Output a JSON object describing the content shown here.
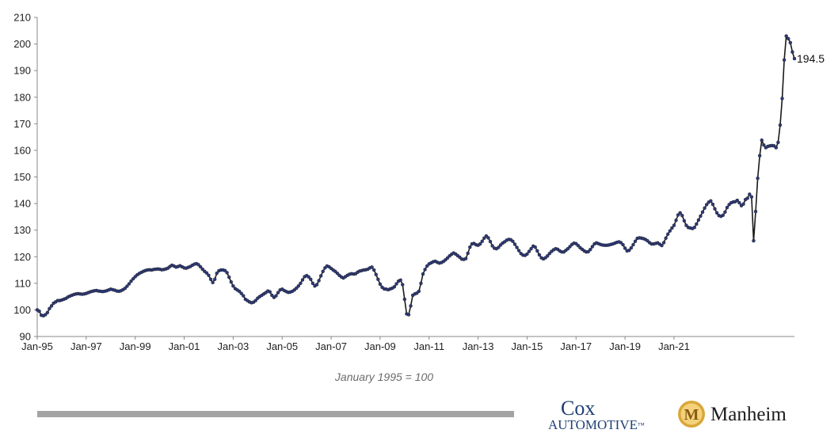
{
  "chart_data": {
    "type": "line",
    "title": "",
    "xlabel": "",
    "ylabel": "",
    "ylim": [
      90,
      210
    ],
    "yticks": [
      90,
      100,
      110,
      120,
      130,
      140,
      150,
      160,
      170,
      180,
      190,
      200,
      210
    ],
    "xticks": [
      "Jan-95",
      "Jan-97",
      "Jan-99",
      "Jan-01",
      "Jan-03",
      "Jan-05",
      "Jan-07",
      "Jan-09",
      "Jan-11",
      "Jan-13",
      "Jan-15",
      "Jan-17",
      "Jan-19",
      "Jan-21"
    ],
    "grid": false,
    "legend": "none",
    "line_color": "#1a1a1a",
    "marker_color": "#2e3a78",
    "series": [
      {
        "x_start": "1995-01",
        "frequency": "monthly",
        "values": [
          100,
          99.5,
          98,
          97.8,
          98.2,
          99,
          100.5,
          101.5,
          102.5,
          103,
          103.5,
          103.5,
          103.7,
          104,
          104.3,
          104.8,
          105.2,
          105.5,
          105.8,
          106,
          106.1,
          106,
          105.9,
          106,
          106.2,
          106.5,
          106.8,
          107,
          107.2,
          107.3,
          107.1,
          107,
          106.9,
          107,
          107.2,
          107.5,
          107.8,
          107.6,
          107.4,
          107.1,
          107,
          107.2,
          107.6,
          108.1,
          108.9,
          109.8,
          110.8,
          111.7,
          112.5,
          113.2,
          113.7,
          114.1,
          114.5,
          114.8,
          115,
          115.1,
          115,
          115.2,
          115.3,
          115.4,
          115.3,
          115.1,
          115.2,
          115.4,
          115.7,
          116.3,
          116.8,
          116.5,
          116.1,
          116.3,
          116.6,
          116.2,
          115.8,
          115.7,
          116,
          116.3,
          116.8,
          117.2,
          117.4,
          117,
          116.2,
          115.3,
          114.5,
          113.9,
          113,
          111.5,
          110.3,
          111.5,
          113.8,
          114.7,
          115,
          115,
          114.8,
          114,
          112.3,
          110.5,
          109,
          108,
          107.5,
          107,
          106.2,
          105.3,
          104,
          103.5,
          103,
          102.7,
          102.9,
          103.5,
          104.4,
          105,
          105.5,
          106,
          106.5,
          107.1,
          106.8,
          105.5,
          104.7,
          105.3,
          106.5,
          107.5,
          107.8,
          107.3,
          106.9,
          106.6,
          106.7,
          107,
          107.5,
          108.2,
          109,
          110,
          111.3,
          112.5,
          112.9,
          112.4,
          111.5,
          110,
          109,
          109.5,
          111,
          112.8,
          114.5,
          115.8,
          116.5,
          116.2,
          115.6,
          115,
          114.5,
          113.8,
          113,
          112.4,
          112,
          112.5,
          113,
          113.4,
          113.6,
          113.5,
          113.6,
          114.2,
          114.6,
          114.8,
          115,
          115.1,
          115.3,
          115.8,
          116.1,
          115,
          113.3,
          111.5,
          109.7,
          108.5,
          107.9,
          107.8,
          107.6,
          107.9,
          108.2,
          108.7,
          109.8,
          110.8,
          111.2,
          109.5,
          104,
          98.5,
          98.2,
          101.5,
          105.5,
          106,
          106.3,
          107,
          110,
          113.5,
          115.2,
          116.5,
          117.3,
          117.7,
          118.1,
          118.3,
          117.9,
          117.6,
          117.8,
          118.2,
          118.8,
          119.5,
          120.3,
          120.9,
          121.4,
          121,
          120.4,
          119.8,
          119.1,
          119,
          119.3,
          121.3,
          123.6,
          124.8,
          125,
          124.5,
          124.3,
          124.8,
          125.8,
          127,
          127.8,
          127.1,
          125.7,
          124.1,
          123.2,
          123,
          123.5,
          124.4,
          125.1,
          125.6,
          126.2,
          126.5,
          126.4,
          125.8,
          124.7,
          123.5,
          122.3,
          121.2,
          120.6,
          120.5,
          121,
          122,
          123,
          124,
          123.6,
          122.2,
          120.7,
          119.6,
          119.2,
          119.6,
          120.3,
          121.2,
          122,
          122.6,
          123,
          122.8,
          122.2,
          121.8,
          121.8,
          122.4,
          123,
          123.8,
          124.6,
          125.1,
          124.9,
          124.2,
          123.4,
          122.8,
          122.2,
          121.8,
          121.9,
          122.7,
          123.8,
          124.8,
          125.2,
          124.9,
          124.6,
          124.4,
          124.3,
          124.3,
          124.4,
          124.6,
          124.8,
          125.1,
          125.4,
          125.6,
          125.3,
          124.5,
          123.2,
          122.2,
          122.4,
          123.3,
          124.5,
          125.8,
          126.9,
          127.1,
          127,
          126.8,
          126.5,
          126,
          125.3,
          124.8,
          124.8,
          125,
          125.2,
          124.7,
          124.2,
          125.3,
          127,
          128.5,
          129.7,
          130.8,
          131.8,
          133.7,
          135.7,
          136.5,
          135.5,
          133.5,
          131.8,
          131,
          130.8,
          130.6,
          131,
          132.3,
          133.8,
          135.3,
          136.8,
          138.3,
          139.6,
          140.5,
          141,
          139.7,
          138,
          136.5,
          135.5,
          135.2,
          135.6,
          136.8,
          138.5,
          139.6,
          140.3,
          140.6,
          140.7,
          141.2,
          140.3,
          139.2,
          139.8,
          141.5,
          142,
          143.5,
          142.5,
          126,
          137,
          149.5,
          158,
          163.8,
          162,
          161,
          161.5,
          161.7,
          161.8,
          161.7,
          161,
          163,
          169.5,
          179.5,
          194,
          203,
          202,
          200.5,
          197,
          194.5
        ]
      }
    ],
    "annotations": [
      "194.5"
    ]
  },
  "footnote": "January 1995 = 100",
  "logos": {
    "cox_top": "Cox",
    "cox_bottom": "AUTOMOTIVE",
    "cox_mark": "™",
    "manheim_text": "Manheim",
    "manheim_emblem_letter": "M"
  },
  "colors": {
    "bottom_bar": "#a3a3a3",
    "cox_blue": "#1f3f73",
    "manheim_gold": "#d9a73a"
  }
}
